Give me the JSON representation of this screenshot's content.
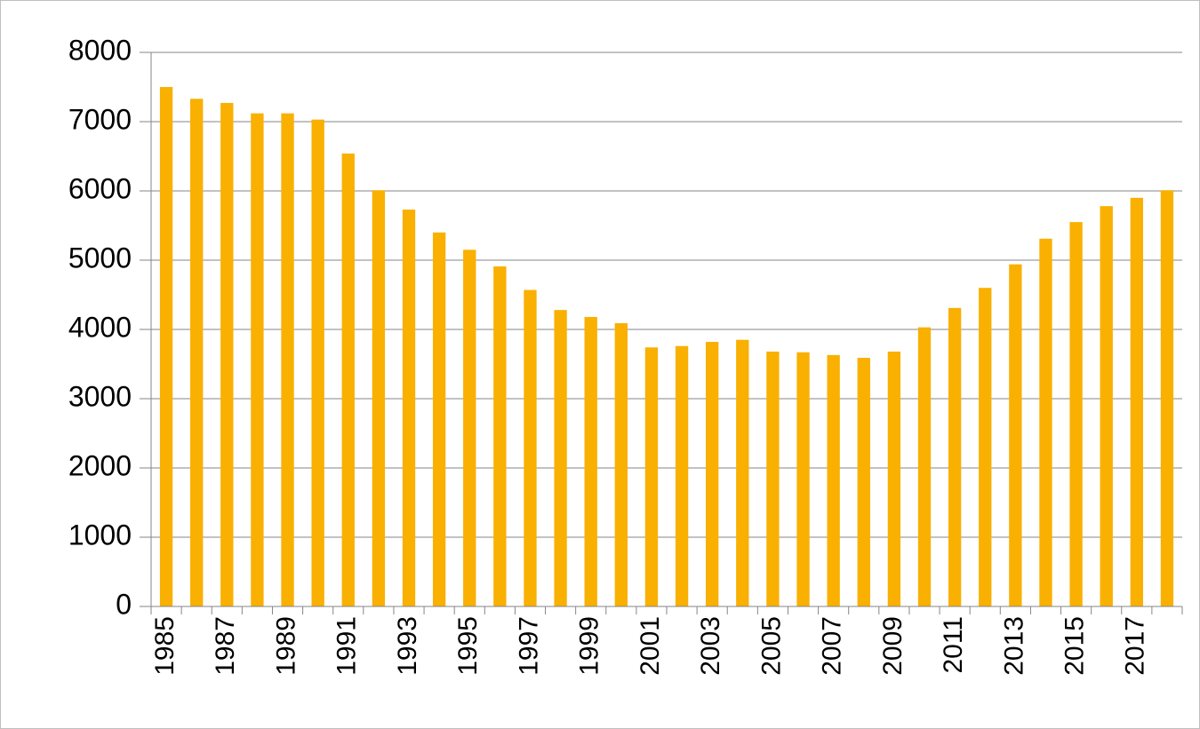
{
  "chart_data": {
    "type": "bar",
    "categories": [
      "1985",
      null,
      "1987",
      null,
      "1989",
      null,
      "1991",
      null,
      "1993",
      null,
      "1995",
      null,
      "1997",
      null,
      "1999",
      null,
      "2001",
      null,
      "2003",
      null,
      "2005",
      null,
      "2007",
      null,
      "2009",
      null,
      "2011",
      null,
      "2013",
      null,
      "2015",
      null,
      "2017",
      null
    ],
    "values": [
      7500,
      7330,
      7270,
      7120,
      7120,
      7030,
      6540,
      6010,
      5730,
      5400,
      5150,
      4910,
      4570,
      4280,
      4180,
      4090,
      3740,
      3760,
      3820,
      3850,
      3680,
      3670,
      3630,
      3590,
      3680,
      4030,
      4310,
      4600,
      4940,
      5310,
      5550,
      5780,
      5900,
      6010
    ],
    "color": "#f9b000",
    "ylim": [
      0,
      8000
    ],
    "yticks": [
      0,
      1000,
      2000,
      3000,
      4000,
      5000,
      6000,
      7000,
      8000
    ],
    "grid": true
  }
}
